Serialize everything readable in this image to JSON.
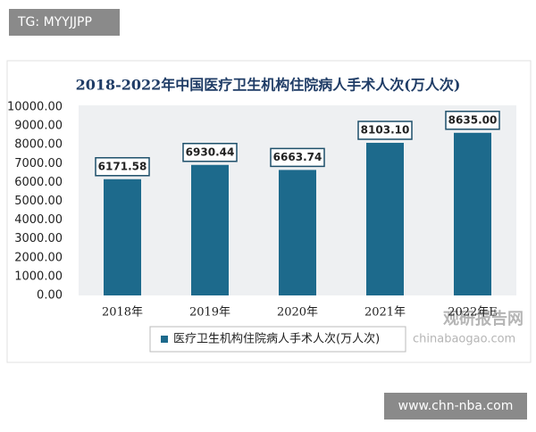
{
  "header_tag": "TG: MYYJJPP",
  "footer_tag": "www.chn-nba.com",
  "watermark": {
    "name": "观研报告网",
    "url": "chinabaogao.com"
  },
  "chart_data": {
    "type": "bar",
    "title": "2018-2022年中国医疗卫生机构住院病人手术人次(万人次)",
    "categories": [
      "2018年",
      "2019年",
      "2020年",
      "2021年",
      "2022年E"
    ],
    "series": [
      {
        "name": "医疗卫生机构住院病人手术人次(万人次)",
        "color": "#1d6a8c",
        "values": [
          6171.58,
          6930.44,
          6663.74,
          8103.1,
          8635.0
        ],
        "value_labels": [
          "6171.58",
          "6930.44",
          "6663.74",
          "8103.10",
          "8635.00"
        ]
      }
    ],
    "ylim": [
      0,
      10000
    ],
    "yticks": [
      {
        "value": 0,
        "label": "0.00"
      },
      {
        "value": 1000,
        "label": "1000.00"
      },
      {
        "value": 2000,
        "label": "2000.00"
      },
      {
        "value": 3000,
        "label": "3000.00"
      },
      {
        "value": 4000,
        "label": "4000.00"
      },
      {
        "value": 5000,
        "label": "5000.00"
      },
      {
        "value": 6000,
        "label": "6000.00"
      },
      {
        "value": 7000,
        "label": "7000.00"
      },
      {
        "value": 8000,
        "label": "8000.00"
      },
      {
        "value": 9000,
        "label": "9000.00"
      },
      {
        "value": 10000,
        "label": "10000.00"
      }
    ],
    "grid": false,
    "legend": "bottom"
  }
}
